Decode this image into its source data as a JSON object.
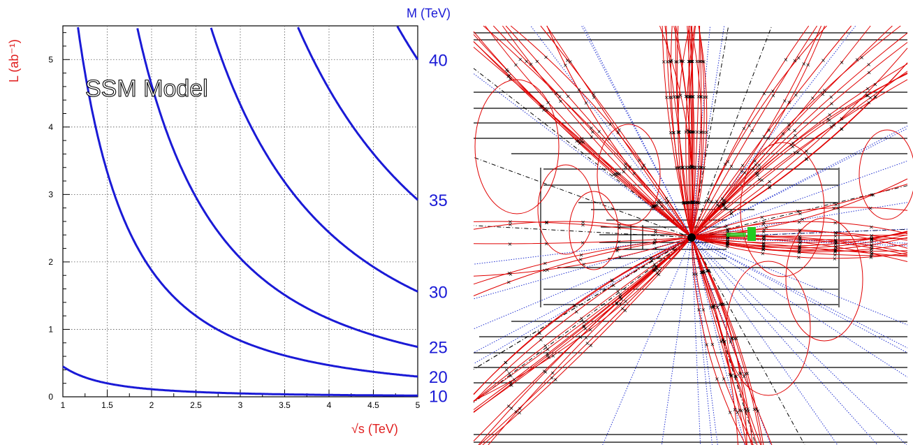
{
  "chart_data": [
    {
      "type": "line",
      "xlabel": "√s  (TeV)",
      "ylabel": "L  (ab⁻¹)",
      "right_axis_label": "M (TeV)",
      "annotation": "SSM Model",
      "xlim": [
        1,
        5
      ],
      "ylim": [
        0,
        5.5
      ],
      "x_ticks": [
        1,
        1.5,
        2,
        2.5,
        3,
        3.5,
        4,
        4.5,
        5
      ],
      "y_ticks": [
        0,
        1,
        2,
        3,
        4,
        5
      ],
      "grid": true,
      "series": [
        {
          "name": "10",
          "k": 0.45
        },
        {
          "name": "20",
          "k": 7.5
        },
        {
          "name": "25",
          "k": 18.5
        },
        {
          "name": "30",
          "k": 39
        },
        {
          "name": "35",
          "k": 73
        },
        {
          "name": "40",
          "k": 125
        }
      ],
      "curve_model": "L = k / s^2",
      "colors": {
        "curve": "#1a1ad6",
        "ylabel": "#e02020",
        "xlabel": "#e02020",
        "right_labels": "#1a1ad6",
        "grid": "#555555"
      }
    },
    {
      "type": "other",
      "description_kind": "event-display",
      "colors": {
        "tracks": "#e00000",
        "dotted": "#2030d0",
        "layers": "#000000",
        "deposit": "#22cc22"
      }
    }
  ]
}
